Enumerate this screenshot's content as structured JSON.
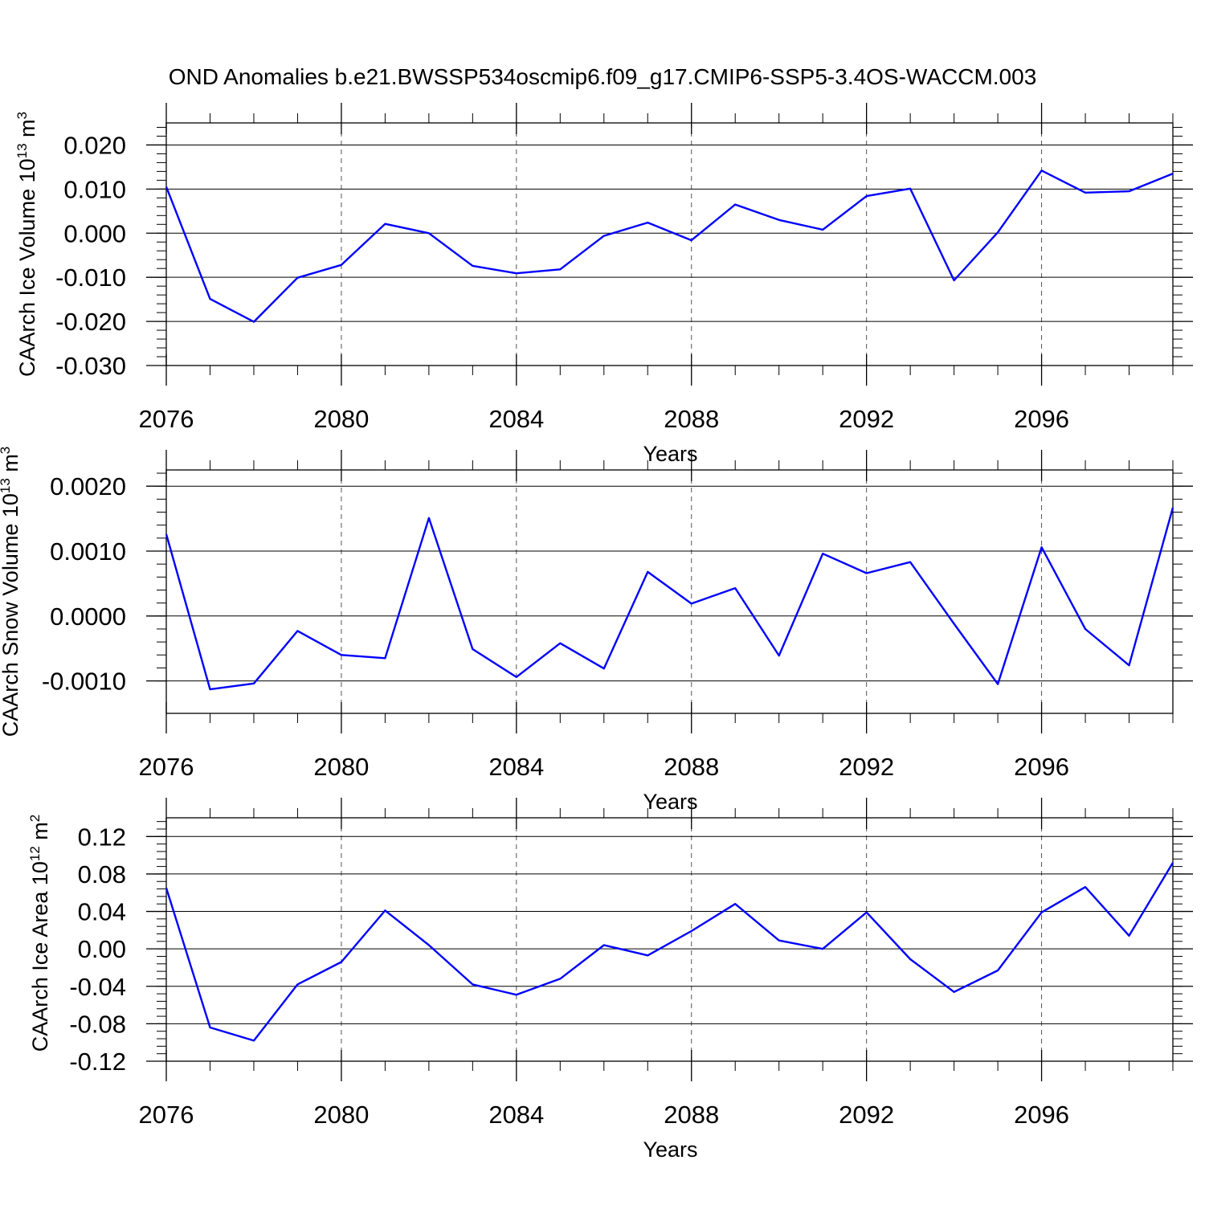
{
  "title": "OND Anomalies b.e21.BWSSP534oscmip6.f09_g17.CMIP6-SSP5-3.4OS-WACCM.003",
  "line_color": "#0000ff",
  "chart_data": [
    {
      "type": "line",
      "title": "OND Anomalies b.e21.BWSSP534oscmip6.f09_g17.CMIP6-SSP5-3.4OS-WACCM.003",
      "xlabel": "Years",
      "ylabel": "CAArch Ice Volume 10",
      "ylabel_exp": "13",
      "ylabel_unit": " m",
      "ylabel_unit_exp": "3",
      "xlim": [
        2076,
        2099
      ],
      "ylim": [
        -0.03,
        0.025
      ],
      "xticks": [
        2076,
        2080,
        2084,
        2088,
        2092,
        2096
      ],
      "xtick_labels": [
        "2076",
        "2080",
        "2084",
        "2088",
        "2092",
        "2096"
      ],
      "yticks": [
        0.02,
        0.01,
        0.0,
        -0.01,
        -0.02,
        -0.03
      ],
      "ytick_labels": [
        "0.020",
        "0.010",
        "0.000",
        "-0.010",
        "-0.020",
        "-0.030"
      ],
      "series": [
        {
          "name": "CAArch Ice Volume",
          "x": [
            2076,
            2077,
            2078,
            2079,
            2080,
            2081,
            2082,
            2083,
            2084,
            2085,
            2086,
            2087,
            2088,
            2089,
            2090,
            2091,
            2092,
            2093,
            2094,
            2095,
            2096,
            2097,
            2098,
            2099
          ],
          "values": [
            0.0105,
            -0.0149,
            -0.0201,
            -0.0101,
            -0.0072,
            0.0021,
            0.0,
            -0.0074,
            -0.0091,
            -0.0082,
            -0.0006,
            0.0024,
            -0.0016,
            0.0065,
            0.003,
            0.0008,
            0.0084,
            0.0101,
            -0.0107,
            0.0002,
            0.0142,
            0.0092,
            0.0095,
            0.0135
          ]
        }
      ]
    },
    {
      "type": "line",
      "title": "",
      "xlabel": "Years",
      "ylabel": "CAArch Snow Volume 10",
      "ylabel_exp": "13",
      "ylabel_unit": " m",
      "ylabel_unit_exp": "3",
      "xlim": [
        2076,
        2099
      ],
      "ylim": [
        -0.0015,
        0.00225
      ],
      "xticks": [
        2076,
        2080,
        2084,
        2088,
        2092,
        2096
      ],
      "xtick_labels": [
        "2076",
        "2080",
        "2084",
        "2088",
        "2092",
        "2096"
      ],
      "yticks": [
        0.002,
        0.001,
        0.0,
        -0.001
      ],
      "ytick_labels": [
        "0.0020",
        "0.0010",
        "0.0000",
        "-0.0010"
      ],
      "series": [
        {
          "name": "CAArch Snow Volume",
          "x": [
            2076,
            2077,
            2078,
            2079,
            2080,
            2081,
            2082,
            2083,
            2084,
            2085,
            2086,
            2087,
            2088,
            2089,
            2090,
            2091,
            2092,
            2093,
            2094,
            2095,
            2096,
            2097,
            2098,
            2099
          ],
          "values": [
            0.00126,
            -0.00113,
            -0.00104,
            -0.00023,
            -0.0006,
            -0.00065,
            0.00151,
            -0.00051,
            -0.00094,
            -0.00042,
            -0.00081,
            0.00068,
            0.00019,
            0.00043,
            -0.00061,
            0.00096,
            0.00066,
            0.00083,
            -0.00012,
            -0.00105,
            0.00106,
            -0.0002,
            -0.00076,
            0.00167
          ]
        }
      ]
    },
    {
      "type": "line",
      "title": "",
      "xlabel": "Years",
      "ylabel": "CAArch Ice Area 10",
      "ylabel_exp": "12",
      "ylabel_unit": " m",
      "ylabel_unit_exp": "2",
      "xlim": [
        2076,
        2099
      ],
      "ylim": [
        -0.12,
        0.14
      ],
      "xticks": [
        2076,
        2080,
        2084,
        2088,
        2092,
        2096
      ],
      "xtick_labels": [
        "2076",
        "2080",
        "2084",
        "2088",
        "2092",
        "2096"
      ],
      "yticks": [
        0.12,
        0.08,
        0.04,
        0.0,
        -0.04,
        -0.08,
        -0.12
      ],
      "ytick_labels": [
        "0.12",
        "0.08",
        "0.04",
        "0.00",
        "-0.04",
        "-0.08",
        "-0.12"
      ],
      "series": [
        {
          "name": "CAArch Ice Area",
          "x": [
            2076,
            2077,
            2078,
            2079,
            2080,
            2081,
            2082,
            2083,
            2084,
            2085,
            2086,
            2087,
            2088,
            2089,
            2090,
            2091,
            2092,
            2093,
            2094,
            2095,
            2096,
            2097,
            2098,
            2099
          ],
          "values": [
            0.065,
            -0.084,
            -0.098,
            -0.038,
            -0.014,
            0.041,
            0.004,
            -0.038,
            -0.049,
            -0.032,
            0.004,
            -0.007,
            0.019,
            0.048,
            0.009,
            0.0,
            0.039,
            -0.011,
            -0.046,
            -0.023,
            0.039,
            0.066,
            0.014,
            0.092
          ]
        }
      ]
    }
  ]
}
